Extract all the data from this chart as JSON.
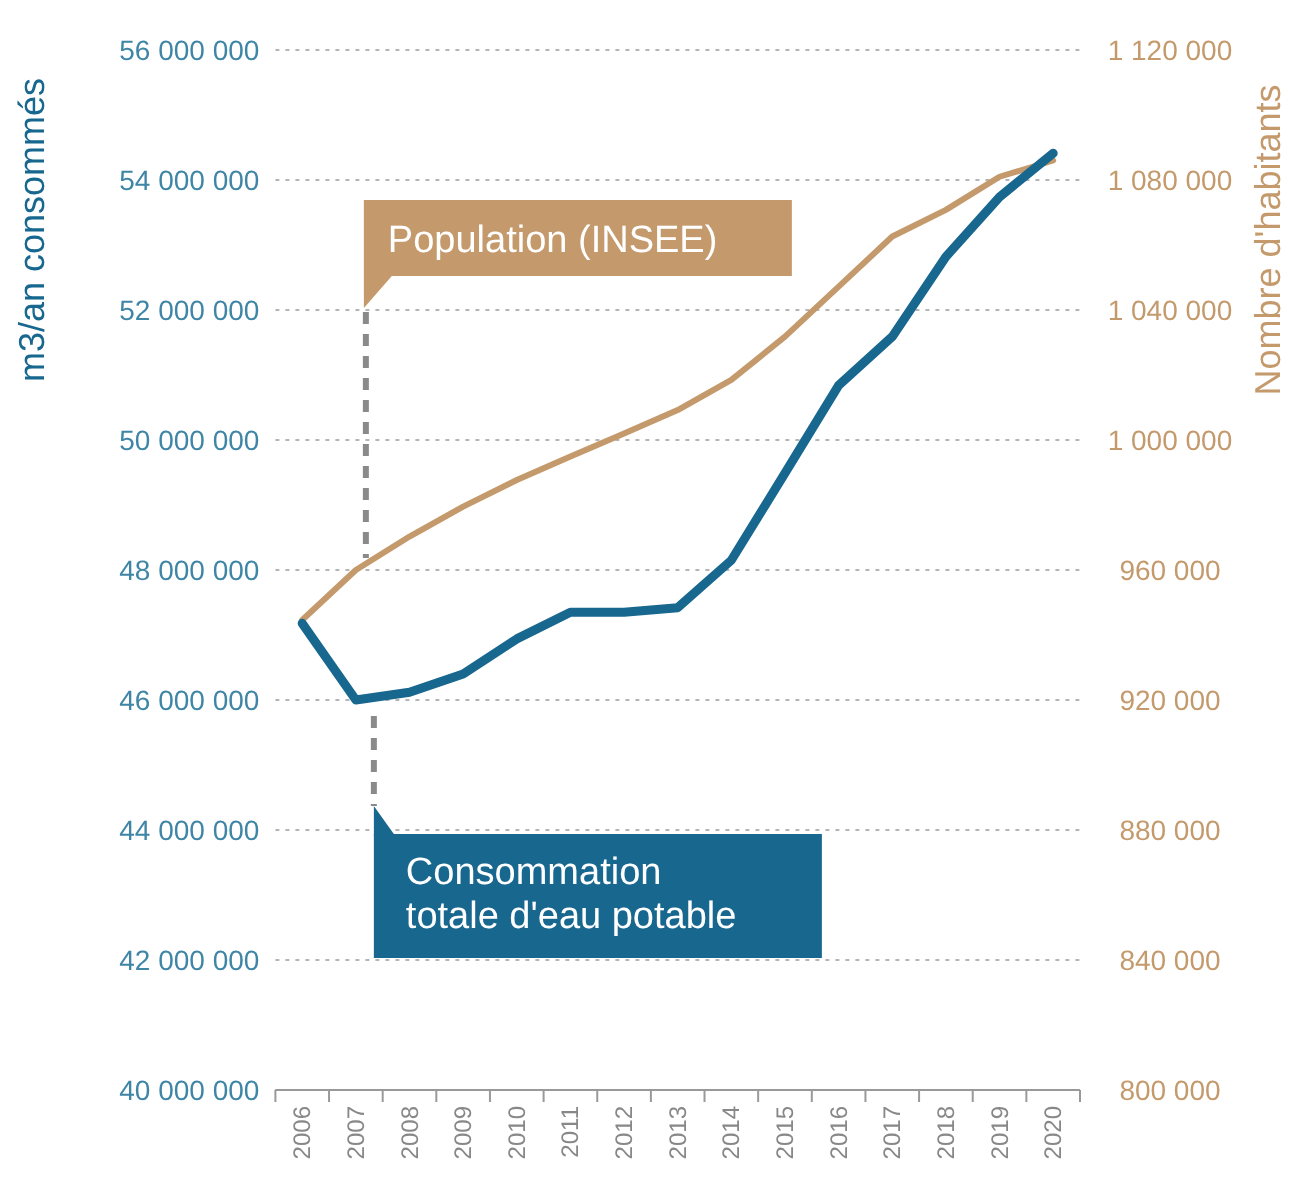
{
  "chart_data": {
    "type": "line",
    "ylabel": "m3/an consommés",
    "y2label": "Nombre d'habitants",
    "categories": [
      "2006",
      "2007",
      "2008",
      "2009",
      "2010",
      "2011",
      "2012",
      "2013",
      "2014",
      "2015",
      "2016",
      "2017",
      "2018",
      "2019",
      "2020"
    ],
    "series": [
      {
        "name": "Consommation totale d'eau potable",
        "color": "#17678f",
        "values": [
          47180000,
          46000000,
          46120000,
          46400000,
          46940000,
          47350000,
          47350000,
          47420000,
          48150000,
          49490000,
          50840000,
          51590000,
          52820000,
          53740000,
          54410000
        ]
      },
      {
        "name": "Population (INSEE)",
        "color": "#c49a6c",
        "axis": "y2",
        "values": [
          944600,
          960000,
          970300,
          979500,
          987700,
          994900,
          1002000,
          1009200,
          1018500,
          1031800,
          1047200,
          1062600,
          1070800,
          1081000,
          1086000
        ]
      }
    ],
    "ylim": [
      40000000,
      56000000
    ],
    "yticks": [
      {
        "value": 40000000,
        "label": "40 000 000"
      },
      {
        "value": 42000000,
        "label": "42 000 000"
      },
      {
        "value": 44000000,
        "label": "44 000 000"
      },
      {
        "value": 46000000,
        "label": "46 000 000"
      },
      {
        "value": 48000000,
        "label": "48 000 000"
      },
      {
        "value": 50000000,
        "label": "50 000 000"
      },
      {
        "value": 52000000,
        "label": "52 000 000"
      },
      {
        "value": 54000000,
        "label": "54 000 000"
      },
      {
        "value": 56000000,
        "label": "56 000 000"
      }
    ],
    "y2lim": [
      800000,
      1120000
    ],
    "y2ticks": [
      {
        "value": 800000,
        "label": "800 000"
      },
      {
        "value": 840000,
        "label": "840 000"
      },
      {
        "value": 880000,
        "label": "880 000"
      },
      {
        "value": 920000,
        "label": "920 000"
      },
      {
        "value": 960000,
        "label": "960 000"
      },
      {
        "value": 1000000,
        "label": "1 000 000"
      },
      {
        "value": 1040000,
        "label": "1 040 000"
      },
      {
        "value": 1080000,
        "label": "1 080 000"
      },
      {
        "value": 1120000,
        "label": "1 120 000"
      }
    ],
    "grid": "y",
    "legend": "bottom left",
    "marker": "none",
    "line_style": "solid"
  }
}
